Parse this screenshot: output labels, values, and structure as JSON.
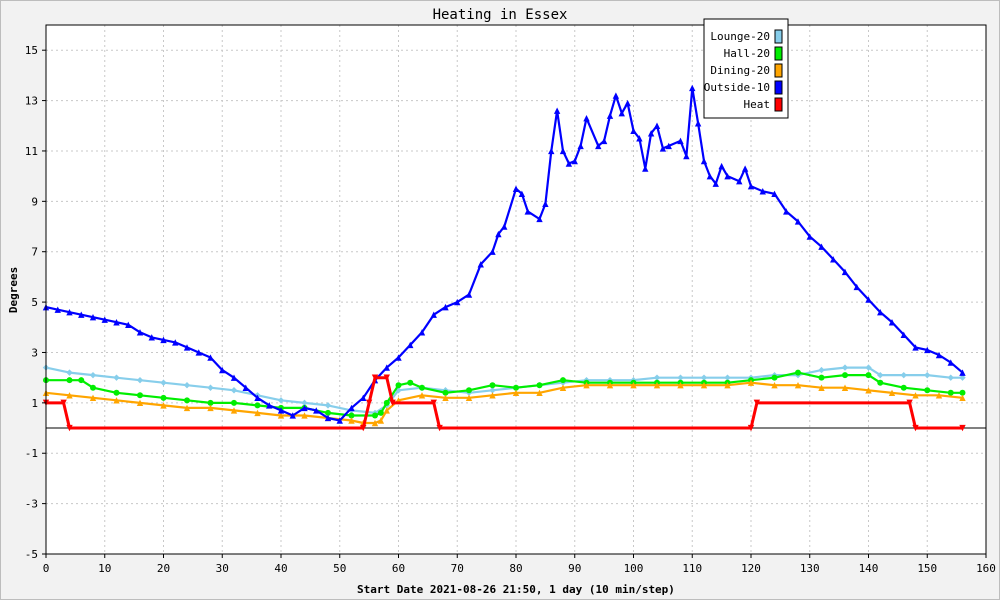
{
  "chart_data": {
    "type": "line",
    "title": "Heating in Essex",
    "xlabel": "Start Date 2021-08-26 21:50, 1 day (10 min/step)",
    "ylabel": "Degrees",
    "xlim": [
      0,
      160
    ],
    "ylim": [
      -5,
      16
    ],
    "xticks": [
      0,
      10,
      20,
      30,
      40,
      50,
      60,
      70,
      80,
      90,
      100,
      110,
      120,
      130,
      140,
      150,
      160
    ],
    "yticks": [
      -5,
      -3,
      -1,
      1,
      3,
      5,
      7,
      9,
      11,
      13,
      15
    ],
    "grid": true,
    "legend_position": "top-right",
    "series": [
      {
        "name": "Lounge-20",
        "color": "#87ceeb",
        "marker": "diamond",
        "x": [
          0,
          4,
          8,
          12,
          16,
          20,
          24,
          28,
          32,
          36,
          40,
          44,
          48,
          52,
          56,
          58,
          60,
          64,
          68,
          72,
          76,
          80,
          84,
          88,
          92,
          96,
          100,
          104,
          108,
          112,
          116,
          120,
          124,
          128,
          132,
          136,
          140,
          142,
          146,
          150,
          154,
          156
        ],
        "y": [
          2.4,
          2.2,
          2.1,
          2.0,
          1.9,
          1.8,
          1.7,
          1.6,
          1.5,
          1.3,
          1.1,
          1.0,
          0.9,
          0.7,
          0.6,
          0.9,
          1.5,
          1.6,
          1.5,
          1.4,
          1.5,
          1.6,
          1.7,
          1.8,
          1.9,
          1.9,
          1.9,
          2.0,
          2.0,
          2.0,
          2.0,
          2.0,
          2.1,
          2.1,
          2.3,
          2.4,
          2.4,
          2.1,
          2.1,
          2.1,
          2.0,
          2.0
        ]
      },
      {
        "name": "Hall-20",
        "color": "#00ee00",
        "marker": "circle",
        "x": [
          0,
          4,
          6,
          8,
          12,
          16,
          20,
          24,
          28,
          32,
          36,
          40,
          44,
          48,
          52,
          56,
          57,
          58,
          60,
          62,
          64,
          68,
          72,
          76,
          80,
          84,
          88,
          92,
          96,
          100,
          104,
          108,
          112,
          116,
          120,
          124,
          128,
          132,
          136,
          140,
          142,
          146,
          150,
          154,
          156
        ],
        "y": [
          1.9,
          1.9,
          1.9,
          1.6,
          1.4,
          1.3,
          1.2,
          1.1,
          1.0,
          1.0,
          0.9,
          0.8,
          0.8,
          0.6,
          0.5,
          0.5,
          0.6,
          1.0,
          1.7,
          1.8,
          1.6,
          1.4,
          1.5,
          1.7,
          1.6,
          1.7,
          1.9,
          1.8,
          1.8,
          1.8,
          1.8,
          1.8,
          1.8,
          1.8,
          1.9,
          2.0,
          2.2,
          2.0,
          2.1,
          2.1,
          1.8,
          1.6,
          1.5,
          1.4,
          1.4
        ]
      },
      {
        "name": "Dining-20",
        "color": "#ffa500",
        "marker": "triangle",
        "x": [
          0,
          4,
          8,
          12,
          16,
          20,
          24,
          28,
          32,
          36,
          40,
          44,
          48,
          52,
          54,
          56,
          57,
          58,
          60,
          64,
          68,
          72,
          76,
          80,
          84,
          88,
          92,
          96,
          100,
          104,
          108,
          112,
          116,
          120,
          124,
          128,
          132,
          136,
          140,
          144,
          148,
          152,
          156
        ],
        "y": [
          1.4,
          1.3,
          1.2,
          1.1,
          1.0,
          0.9,
          0.8,
          0.8,
          0.7,
          0.6,
          0.5,
          0.5,
          0.4,
          0.3,
          0.2,
          0.2,
          0.3,
          0.7,
          1.1,
          1.3,
          1.2,
          1.2,
          1.3,
          1.4,
          1.4,
          1.6,
          1.7,
          1.7,
          1.7,
          1.7,
          1.7,
          1.7,
          1.7,
          1.8,
          1.7,
          1.7,
          1.6,
          1.6,
          1.5,
          1.4,
          1.3,
          1.3,
          1.2
        ]
      },
      {
        "name": "Outside-10",
        "color": "#0000ff",
        "marker": "triangle",
        "x": [
          0,
          2,
          4,
          6,
          8,
          10,
          12,
          14,
          16,
          18,
          20,
          22,
          24,
          26,
          28,
          30,
          32,
          34,
          36,
          38,
          40,
          42,
          44,
          46,
          48,
          50,
          52,
          54,
          56,
          58,
          60,
          62,
          64,
          66,
          68,
          70,
          72,
          74,
          76,
          77,
          78,
          80,
          81,
          82,
          84,
          85,
          86,
          87,
          88,
          89,
          90,
          91,
          92,
          94,
          95,
          96,
          97,
          98,
          99,
          100,
          101,
          102,
          103,
          104,
          105,
          106,
          108,
          109,
          110,
          111,
          112,
          113,
          114,
          115,
          116,
          118,
          119,
          120,
          122,
          124,
          126,
          128,
          130,
          132,
          134,
          136,
          138,
          140,
          142,
          144,
          146,
          148,
          150,
          152,
          154,
          156
        ],
        "y": [
          4.8,
          4.7,
          4.6,
          4.5,
          4.4,
          4.3,
          4.2,
          4.1,
          3.8,
          3.6,
          3.5,
          3.4,
          3.2,
          3.0,
          2.8,
          2.3,
          2.0,
          1.6,
          1.2,
          0.9,
          0.7,
          0.5,
          0.8,
          0.7,
          0.4,
          0.3,
          0.8,
          1.2,
          1.9,
          2.4,
          2.8,
          3.3,
          3.8,
          4.5,
          4.8,
          5.0,
          5.3,
          6.5,
          7.0,
          7.7,
          8.0,
          9.5,
          9.3,
          8.6,
          8.3,
          8.9,
          11.0,
          12.6,
          11.0,
          10.5,
          10.6,
          11.2,
          12.3,
          11.2,
          11.4,
          12.4,
          13.2,
          12.5,
          12.9,
          11.8,
          11.5,
          10.3,
          11.7,
          12.0,
          11.1,
          11.2,
          11.4,
          10.8,
          13.5,
          12.1,
          10.6,
          10.0,
          9.7,
          10.4,
          10.0,
          9.8,
          10.3,
          9.6,
          9.4,
          9.3,
          8.6,
          8.2,
          7.6,
          7.2,
          6.7,
          6.2,
          5.6,
          5.1,
          4.6,
          4.2,
          3.7,
          3.2,
          3.1,
          2.9,
          2.6,
          2.2
        ]
      },
      {
        "name": "Heat",
        "color": "#ff0000",
        "marker": "triangle-down",
        "x": [
          0,
          3,
          4,
          54,
          55,
          56,
          58,
          59,
          66,
          67,
          120,
          121,
          147,
          148,
          156
        ],
        "y": [
          1,
          1,
          0,
          0,
          1,
          2,
          2,
          1,
          1,
          0,
          0,
          1,
          1,
          0,
          0
        ]
      }
    ]
  }
}
